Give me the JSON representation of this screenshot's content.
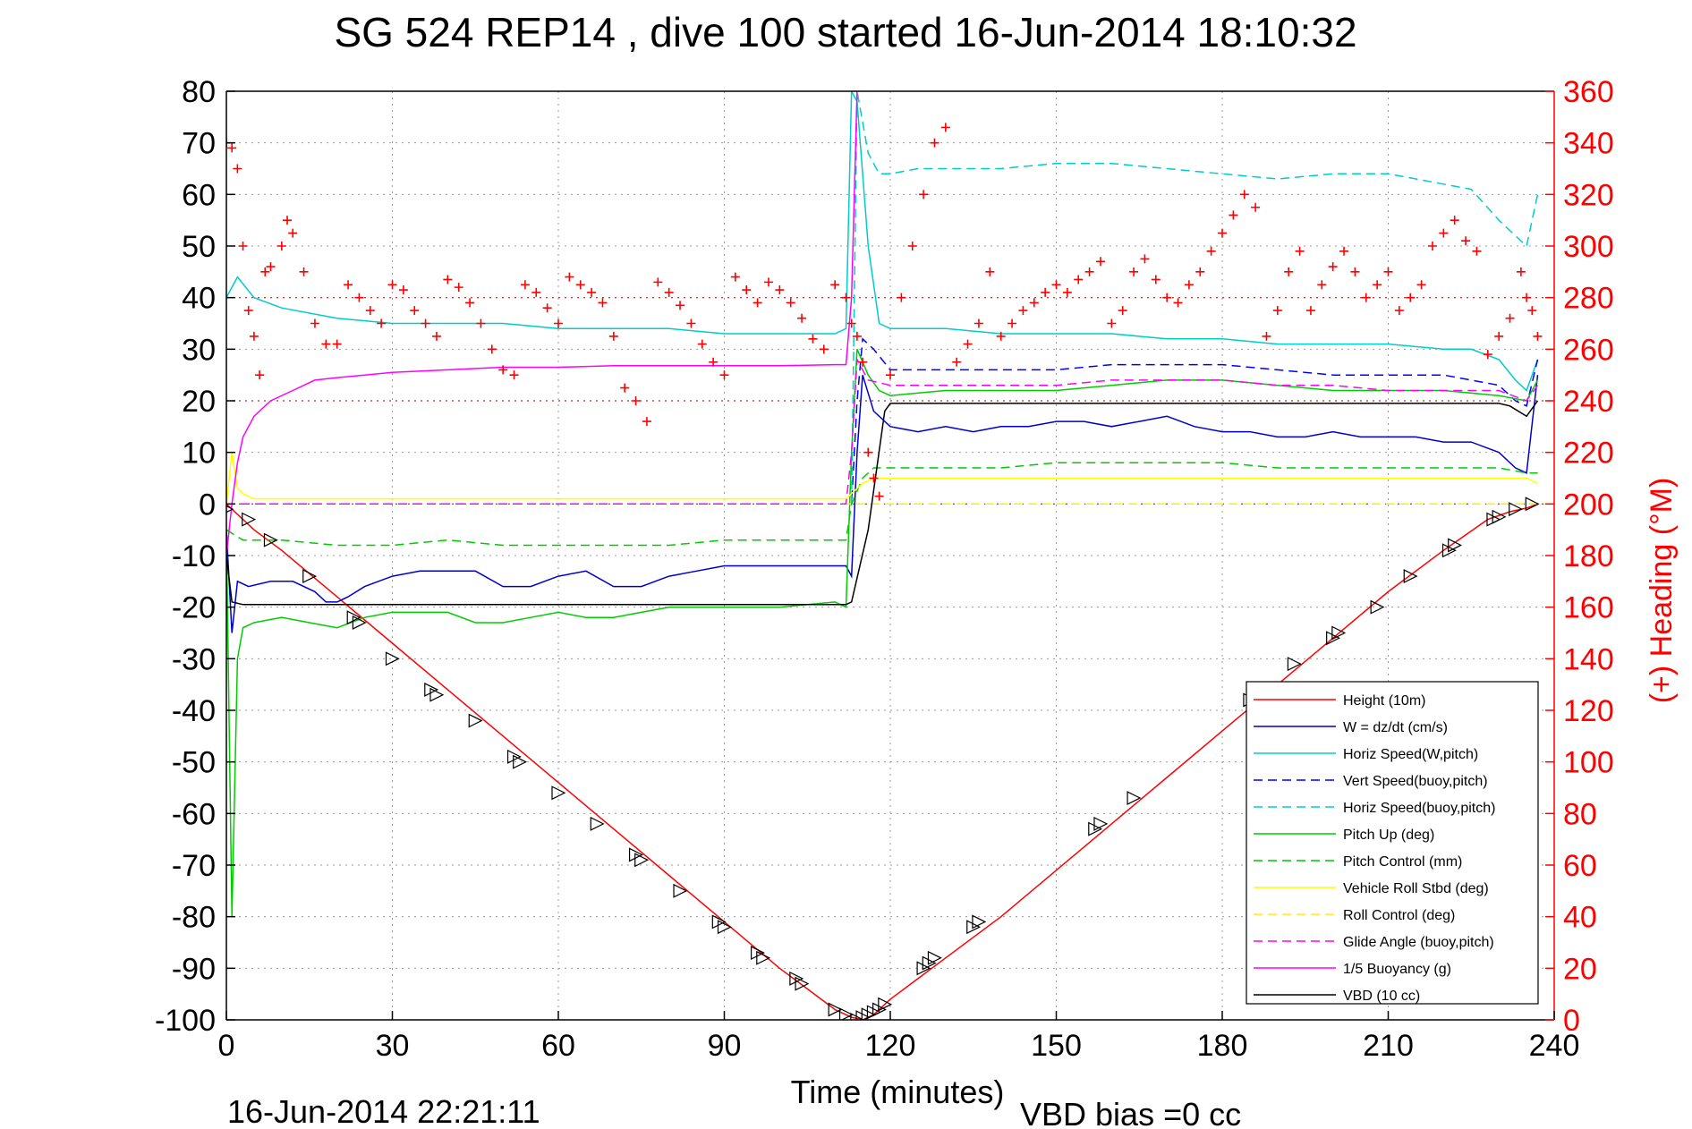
{
  "chart_data": {
    "type": "line",
    "title": "SG 524   REP14  , dive 100 started 16-Jun-2014 18:10:32",
    "timestamp": "16-Jun-2014 22:21:11",
    "footnote": "VBD bias =0 cc",
    "xlabel": "Time (minutes)",
    "ylabel": "",
    "y2label": "(+) Heading (°M)",
    "xlim": [
      0,
      240
    ],
    "ylim": [
      -100,
      80
    ],
    "y2lim": [
      0,
      360
    ],
    "xticks": [
      "0",
      "30",
      "60",
      "90",
      "120",
      "150",
      "180",
      "210",
      "240"
    ],
    "yticks": [
      "80",
      "70",
      "60",
      "50",
      "40",
      "30",
      "20",
      "10",
      "0",
      "-10",
      "-20",
      "-30",
      "-40",
      "-50",
      "-60",
      "-70",
      "-80",
      "-90",
      "-100"
    ],
    "y2ticks": [
      "360",
      "340",
      "320",
      "300",
      "280",
      "260",
      "240",
      "220",
      "200",
      "180",
      "160",
      "140",
      "120",
      "100",
      "80",
      "60",
      "40",
      "20",
      "0"
    ],
    "grid": true,
    "legend_position": "bottom-right",
    "colors": {
      "axis": "#000000",
      "heading": "#ff0000",
      "grid": "#999999",
      "reference": "#aa3333"
    },
    "series": [
      {
        "name": "Height (10m)",
        "color": "#ff0000",
        "dash": "solid",
        "x": [
          0,
          5,
          10,
          20,
          30,
          40,
          50,
          60,
          70,
          80,
          90,
          100,
          105,
          110,
          113,
          115,
          117,
          120,
          125,
          130,
          140,
          150,
          160,
          170,
          180,
          190,
          200,
          210,
          220,
          228,
          232,
          235,
          237
        ],
        "y": [
          0,
          -5,
          -9,
          -18,
          -27,
          -36,
          -45,
          -54,
          -63,
          -72,
          -81,
          -90,
          -94,
          -98,
          -99.5,
          -100,
          -99,
          -96,
          -92,
          -88,
          -80,
          -71,
          -62,
          -53,
          -44,
          -35,
          -26,
          -17,
          -9,
          -3,
          -1.5,
          -0.8,
          0
        ]
      },
      {
        "name": "W = dz/dt (cm/s)",
        "color": "#0000cc",
        "dash": "solid",
        "x": [
          0,
          1,
          2,
          4,
          8,
          12,
          16,
          18,
          20,
          22,
          25,
          30,
          35,
          40,
          45,
          50,
          55,
          60,
          65,
          70,
          75,
          80,
          85,
          90,
          95,
          100,
          105,
          110,
          112,
          113,
          114,
          115,
          117,
          120,
          125,
          130,
          135,
          140,
          145,
          150,
          155,
          160,
          165,
          170,
          175,
          180,
          185,
          190,
          195,
          200,
          205,
          210,
          215,
          220,
          225,
          230,
          233,
          235,
          237
        ],
        "y": [
          -5,
          -25,
          -15,
          -16,
          -15,
          -15,
          -17,
          -19,
          -19,
          -18,
          -16,
          -14,
          -13,
          -13,
          -13,
          -16,
          -16,
          -14,
          -13,
          -16,
          -16,
          -14,
          -13,
          -12,
          -12,
          -12,
          -12,
          -12,
          -12,
          -14,
          10,
          25,
          18,
          15,
          14,
          15,
          14,
          15,
          15,
          16,
          16,
          15,
          16,
          17,
          15,
          14,
          14,
          13,
          13,
          14,
          13,
          13,
          13,
          12,
          12,
          10,
          7,
          6,
          25
        ]
      },
      {
        "name": "Horiz Speed(W,pitch)",
        "color": "#00cccc",
        "dash": "solid",
        "x": [
          0,
          1,
          2,
          5,
          10,
          20,
          30,
          40,
          50,
          60,
          70,
          80,
          90,
          100,
          110,
          112,
          113,
          114,
          116,
          118,
          120,
          130,
          140,
          150,
          160,
          170,
          180,
          190,
          200,
          210,
          220,
          225,
          230,
          233,
          235,
          237
        ],
        "y": [
          40,
          42,
          44,
          40,
          38,
          36,
          35,
          35,
          35,
          34,
          34,
          34,
          33,
          33,
          33,
          34,
          80,
          78,
          50,
          35,
          34,
          34,
          33,
          33,
          33,
          32,
          32,
          31,
          31,
          31,
          30,
          30,
          28,
          24,
          22,
          28
        ]
      },
      {
        "name": "Vert Speed(buoy,pitch)",
        "color": "#0000ff",
        "dash": "dashed",
        "x": [
          0,
          0.5,
          1,
          113,
          114,
          115,
          117,
          120,
          130,
          140,
          150,
          160,
          170,
          180,
          190,
          200,
          210,
          220,
          225,
          230,
          233,
          235,
          237
        ],
        "y": [
          0,
          0,
          0,
          0,
          20,
          32,
          30,
          26,
          26,
          26,
          26,
          27,
          27,
          27,
          26,
          25,
          25,
          25,
          24,
          23,
          20,
          19,
          28
        ]
      },
      {
        "name": "Horiz Speed(buoy,pitch)",
        "color": "#00cccc",
        "dash": "dashed",
        "x": [
          113,
          114,
          116,
          118,
          120,
          125,
          130,
          140,
          150,
          160,
          170,
          180,
          190,
          200,
          210,
          215,
          220,
          225,
          230,
          233,
          235,
          237
        ],
        "y": [
          0,
          80,
          68,
          64,
          64,
          65,
          65,
          65,
          66,
          66,
          65,
          64,
          63,
          64,
          64,
          63,
          62,
          61,
          55,
          52,
          50,
          60
        ]
      },
      {
        "name": "Pitch Up (deg)",
        "color": "#00cc00",
        "dash": "solid",
        "x": [
          0,
          1,
          2,
          3,
          5,
          10,
          15,
          20,
          25,
          30,
          35,
          40,
          45,
          50,
          55,
          60,
          65,
          70,
          75,
          80,
          90,
          100,
          110,
          112,
          113,
          114,
          116,
          118,
          120,
          130,
          140,
          150,
          160,
          170,
          180,
          190,
          200,
          210,
          220,
          230,
          235,
          237
        ],
        "y": [
          -5,
          -80,
          -30,
          -24,
          -23,
          -22,
          -23,
          -24,
          -22,
          -21,
          -21,
          -21,
          -23,
          -23,
          -22,
          -21,
          -22,
          -22,
          -21,
          -20,
          -20,
          -20,
          -19,
          -20,
          10,
          30,
          25,
          22,
          21,
          22,
          22,
          22,
          23,
          24,
          24,
          23,
          22,
          22,
          22,
          21,
          20,
          24
        ]
      },
      {
        "name": "Pitch Control (mm)",
        "color": "#00cc00",
        "dash": "dashed",
        "x": [
          0,
          3,
          10,
          20,
          30,
          40,
          50,
          60,
          70,
          80,
          90,
          100,
          110,
          112,
          113,
          115,
          117,
          120,
          130,
          140,
          150,
          160,
          170,
          180,
          190,
          200,
          210,
          220,
          230,
          235,
          237
        ],
        "y": [
          -5,
          -7,
          -7,
          -8,
          -8,
          -7,
          -8,
          -8,
          -8,
          -8,
          -7,
          -7,
          -7,
          -7,
          0,
          5,
          7,
          7,
          7,
          7,
          8,
          8,
          8,
          8,
          7,
          7,
          7,
          7,
          7,
          6,
          6
        ]
      },
      {
        "name": "Vehicle Roll Stbd (deg)",
        "color": "#ffff00",
        "dash": "solid",
        "x": [
          0,
          1,
          2,
          3,
          5,
          10,
          20,
          30,
          40,
          50,
          60,
          70,
          80,
          90,
          100,
          110,
          112,
          113,
          115,
          117,
          120,
          130,
          140,
          150,
          160,
          170,
          180,
          190,
          200,
          210,
          220,
          230,
          235,
          237
        ],
        "y": [
          0,
          10,
          3,
          2,
          1,
          1,
          1,
          1,
          1,
          1,
          1,
          1,
          1,
          1,
          1,
          1,
          1,
          2,
          4,
          5,
          5,
          5,
          5,
          5,
          5,
          5,
          5,
          5,
          5,
          5,
          5,
          5,
          5,
          4
        ]
      },
      {
        "name": "Roll Control (deg)",
        "color": "#ffee00",
        "dash": "dashed",
        "x": [
          0,
          240
        ],
        "y": [
          0,
          0
        ]
      },
      {
        "name": "Glide Angle (buoy,pitch)",
        "color": "#ff00ff",
        "dash": "dashed",
        "x": [
          0,
          112,
          113,
          114,
          116,
          120,
          130,
          140,
          150,
          160,
          170,
          180,
          190,
          200,
          210,
          220,
          230,
          235,
          237
        ],
        "y": [
          0,
          0,
          10,
          28,
          24,
          23,
          23,
          23,
          23,
          24,
          24,
          24,
          23,
          23,
          22,
          22,
          22,
          20,
          23
        ]
      },
      {
        "name": "1/5 Buoyancy (g)",
        "color": "#ff00ff",
        "dash": "solid",
        "x": [
          0,
          1,
          2,
          3,
          5,
          8,
          12,
          16,
          20,
          25,
          30,
          40,
          50,
          60,
          70,
          80,
          90,
          100,
          110,
          112,
          113,
          114,
          116
        ],
        "y": [
          -10,
          0,
          8,
          13,
          17,
          20,
          22,
          24,
          24.5,
          25,
          25.5,
          26,
          26.5,
          26.5,
          26.8,
          26.8,
          26.8,
          26.8,
          27,
          27,
          40,
          80,
          90
        ]
      },
      {
        "name": "VBD (10 cc)",
        "color": "#000000",
        "dash": "solid",
        "x": [
          0,
          1,
          3,
          10,
          30,
          60,
          90,
          112,
          113,
          116,
          119,
          120,
          150,
          180,
          210,
          230,
          232,
          235,
          237
        ],
        "y": [
          -10,
          -19,
          -19.5,
          -19.5,
          -19.5,
          -19.5,
          -19.5,
          -19.5,
          -19,
          -5,
          18,
          19.5,
          19.5,
          19.5,
          19.5,
          19.5,
          19,
          17,
          20
        ]
      }
    ],
    "heading": {
      "name": "(+) Heading",
      "color": "#ff0000",
      "x": [
        0,
        1,
        2,
        3,
        4,
        5,
        6,
        7,
        8,
        10,
        11,
        12,
        14,
        16,
        18,
        20,
        22,
        24,
        26,
        28,
        30,
        32,
        34,
        36,
        38,
        40,
        42,
        44,
        46,
        48,
        50,
        52,
        54,
        56,
        58,
        60,
        62,
        64,
        66,
        68,
        70,
        72,
        74,
        76,
        78,
        80,
        82,
        84,
        86,
        88,
        90,
        92,
        94,
        96,
        98,
        100,
        102,
        104,
        106,
        108,
        110,
        112,
        113,
        114,
        115,
        116,
        117,
        118,
        120,
        122,
        124,
        126,
        128,
        130,
        132,
        134,
        136,
        138,
        140,
        142,
        144,
        146,
        148,
        150,
        152,
        154,
        156,
        158,
        160,
        162,
        164,
        166,
        168,
        170,
        172,
        174,
        176,
        178,
        180,
        182,
        184,
        186,
        188,
        190,
        192,
        194,
        196,
        198,
        200,
        202,
        204,
        206,
        208,
        210,
        212,
        214,
        216,
        218,
        220,
        222,
        224,
        226,
        228,
        230,
        232,
        234,
        235,
        236,
        237
      ],
      "y": [
        340,
        338,
        330,
        300,
        275,
        265,
        250,
        290,
        292,
        300,
        310,
        305,
        290,
        270,
        262,
        262,
        285,
        280,
        275,
        270,
        285,
        283,
        275,
        270,
        265,
        287,
        284,
        278,
        270,
        260,
        252,
        250,
        285,
        282,
        276,
        270,
        288,
        285,
        282,
        278,
        265,
        245,
        240,
        232,
        286,
        282,
        277,
        270,
        262,
        255,
        250,
        288,
        283,
        278,
        286,
        283,
        278,
        272,
        264,
        260,
        285,
        280,
        270,
        265,
        255,
        220,
        210,
        203,
        250,
        280,
        300,
        320,
        340,
        346,
        255,
        262,
        270,
        290,
        265,
        270,
        275,
        278,
        282,
        285,
        282,
        287,
        290,
        294,
        270,
        275,
        290,
        295,
        287,
        280,
        278,
        285,
        290,
        298,
        305,
        312,
        320,
        315,
        265,
        275,
        290,
        298,
        275,
        285,
        292,
        298,
        290,
        280,
        285,
        290,
        275,
        280,
        285,
        300,
        305,
        310,
        302,
        298,
        258,
        265,
        272,
        290,
        280,
        275,
        265
      ]
    },
    "markers": {
      "description_shown": "",
      "x": [
        0,
        4,
        8,
        15,
        23,
        24,
        30,
        37,
        38,
        45,
        52,
        53,
        60,
        67,
        74,
        75,
        82,
        89,
        90,
        96,
        97,
        103,
        104,
        110,
        112,
        114,
        115,
        116,
        117,
        118,
        119,
        126,
        127,
        128,
        135,
        136,
        157,
        158,
        164,
        185,
        193,
        200,
        201,
        208,
        214,
        221,
        222,
        229,
        230,
        233,
        236
      ],
      "y": [
        -1,
        -3,
        -7,
        -14,
        -22,
        -23,
        -30,
        -36,
        -37,
        -42,
        -49,
        -50,
        -56,
        -62,
        -68,
        -69,
        -75,
        -81,
        -82,
        -87,
        -88,
        -92,
        -93,
        -98,
        -99,
        -100,
        -99.5,
        -99,
        -98.5,
        -98,
        -97,
        -90,
        -89,
        -88,
        -82,
        -81,
        -63,
        -62,
        -57,
        -38,
        -31,
        -26,
        -25,
        -20,
        -14,
        -9,
        -8,
        -3,
        -2.5,
        -1,
        0
      ]
    },
    "reference_lines": [
      {
        "axis": "y",
        "value": 20,
        "color": "#aa3333",
        "dash": "dotted"
      },
      {
        "axis": "y",
        "value": 0,
        "color": "#aa3333",
        "dash": "dotted"
      },
      {
        "axis": "y2",
        "value": 280,
        "color": "#aa3333",
        "dash": "dotted"
      }
    ]
  }
}
